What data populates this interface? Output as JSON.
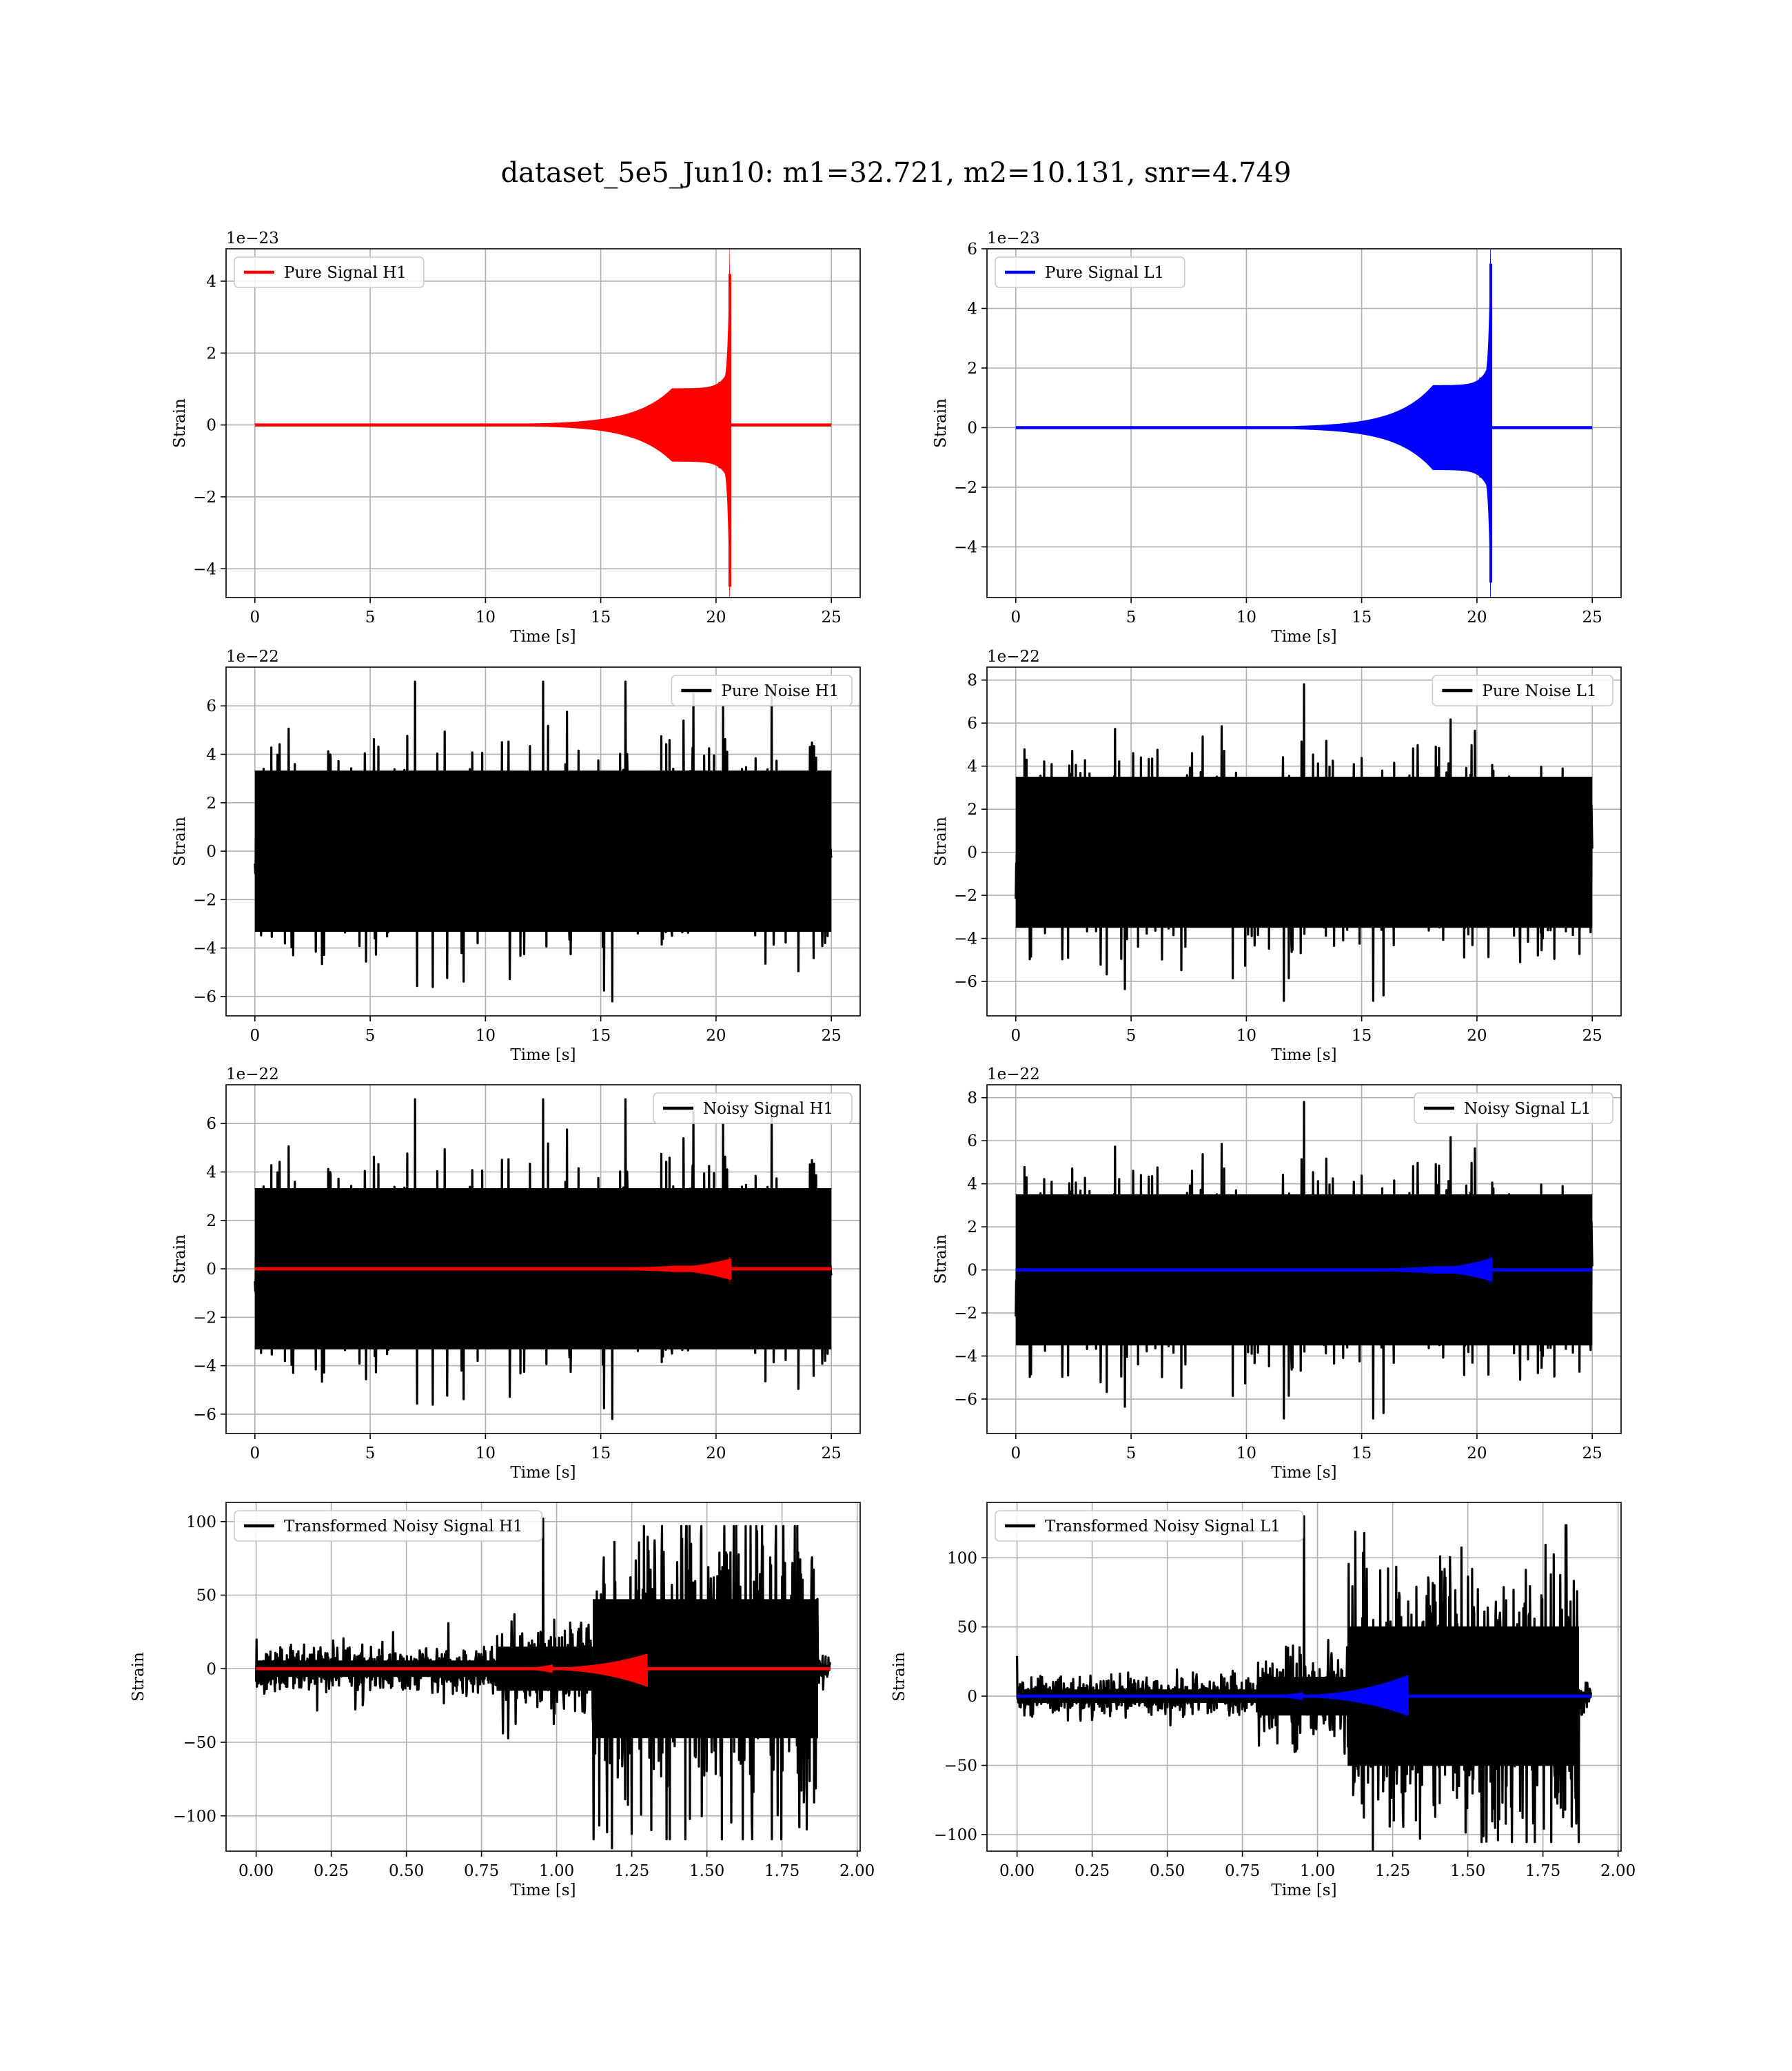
{
  "figure": {
    "title": "dataset_5e5_Jun10: m1=32.721, m2=10.131, snr=4.749"
  },
  "colors": {
    "h1": "#ff0000",
    "l1": "#0000ff",
    "noise": "#000000",
    "grid": "#b0b0b0"
  },
  "chart_data": [
    {
      "type": "line",
      "kind": "chirp",
      "legend": "Pure Signal H1",
      "legend_loc": "upper left",
      "xlabel": "Time [s]",
      "ylabel": "Strain",
      "offset_text": "1e−23",
      "xlim": [
        -1.25,
        26.25
      ],
      "ylim": [
        -4.8,
        4.9
      ],
      "xticks": [
        0,
        5,
        10,
        15,
        20,
        25
      ],
      "xticklabels": [
        "0",
        "5",
        "10",
        "15",
        "20",
        "25"
      ],
      "yticks": [
        -4,
        -2,
        0,
        2,
        4
      ],
      "yticklabels": [
        "−4",
        "−2",
        "0",
        "2",
        "4"
      ],
      "grid": true,
      "series": [
        {
          "color": "#ff0000",
          "x_start": 0,
          "x_end": 25,
          "merger_time": 20.6,
          "plateau_amplitude": 1.0,
          "peak_positive": 4.2,
          "peak_negative": -4.5,
          "plateau_start": 18.1
        }
      ]
    },
    {
      "type": "line",
      "kind": "chirp",
      "legend": "Pure Signal L1",
      "legend_loc": "upper left",
      "xlabel": "Time [s]",
      "ylabel": "Strain",
      "offset_text": "1e−23",
      "xlim": [
        -1.25,
        26.25
      ],
      "ylim": [
        -5.7,
        6.0
      ],
      "xticks": [
        0,
        5,
        10,
        15,
        20,
        25
      ],
      "xticklabels": [
        "0",
        "5",
        "10",
        "15",
        "20",
        "25"
      ],
      "yticks": [
        -4,
        -2,
        0,
        2,
        4,
        6
      ],
      "yticklabels": [
        "−4",
        "−2",
        "0",
        "2",
        "4",
        "6"
      ],
      "grid": true,
      "series": [
        {
          "color": "#0000ff",
          "x_start": 0,
          "x_end": 25,
          "merger_time": 20.6,
          "plateau_amplitude": 1.4,
          "peak_positive": 5.5,
          "peak_negative": -5.2,
          "plateau_start": 18.1
        }
      ]
    },
    {
      "type": "line",
      "kind": "noise",
      "legend": "Pure Noise H1",
      "legend_loc": "upper right",
      "xlabel": "Time [s]",
      "ylabel": "Strain",
      "offset_text": "1e−22",
      "xlim": [
        -1.25,
        26.25
      ],
      "ylim": [
        -6.8,
        7.6
      ],
      "xticks": [
        0,
        5,
        10,
        15,
        20,
        25
      ],
      "xticklabels": [
        "0",
        "5",
        "10",
        "15",
        "20",
        "25"
      ],
      "yticks": [
        -6,
        -4,
        -2,
        0,
        2,
        4,
        6
      ],
      "yticklabels": [
        "−6",
        "−4",
        "−2",
        "0",
        "2",
        "4",
        "6"
      ],
      "grid": true,
      "series": [
        {
          "color": "#000000",
          "x_start": 0,
          "x_end": 25,
          "envelope": 3.7,
          "max": 7.0,
          "min": -6.2,
          "seed": 11
        }
      ]
    },
    {
      "type": "line",
      "kind": "noise",
      "legend": "Pure Noise L1",
      "legend_loc": "upper right",
      "xlabel": "Time [s]",
      "ylabel": "Strain",
      "offset_text": "1e−22",
      "xlim": [
        -1.25,
        26.25
      ],
      "ylim": [
        -7.6,
        8.6
      ],
      "xticks": [
        0,
        5,
        10,
        15,
        20,
        25
      ],
      "xticklabels": [
        "0",
        "5",
        "10",
        "15",
        "20",
        "25"
      ],
      "yticks": [
        -6,
        -4,
        -2,
        0,
        2,
        4,
        6,
        8
      ],
      "yticklabels": [
        "−6",
        "−4",
        "−2",
        "0",
        "2",
        "4",
        "6",
        "8"
      ],
      "grid": true,
      "series": [
        {
          "color": "#000000",
          "x_start": 0,
          "x_end": 25,
          "envelope": 3.9,
          "max": 7.8,
          "min": -6.9,
          "seed": 23
        }
      ]
    },
    {
      "type": "line",
      "kind": "noisy",
      "legend": "Noisy Signal H1",
      "legend_loc": "upper right",
      "xlabel": "Time [s]",
      "ylabel": "Strain",
      "offset_text": "1e−22",
      "xlim": [
        -1.25,
        26.25
      ],
      "ylim": [
        -6.8,
        7.6
      ],
      "xticks": [
        0,
        5,
        10,
        15,
        20,
        25
      ],
      "xticklabels": [
        "0",
        "5",
        "10",
        "15",
        "20",
        "25"
      ],
      "yticks": [
        -6,
        -4,
        -2,
        0,
        2,
        4,
        6
      ],
      "yticklabels": [
        "−6",
        "−4",
        "−2",
        "0",
        "2",
        "4",
        "6"
      ],
      "grid": true,
      "series": [
        {
          "color": "#000000",
          "x_start": 0,
          "x_end": 25,
          "envelope": 3.7,
          "max": 7.0,
          "min": -6.2,
          "seed": 11
        },
        {
          "color": "#ff0000",
          "x_start": 0,
          "x_end": 25,
          "merger_time": 20.6,
          "plateau_amplitude": 0.1,
          "peak_positive": 0.42,
          "peak_negative": -0.45,
          "plateau_start": 18.1
        }
      ]
    },
    {
      "type": "line",
      "kind": "noisy",
      "legend": "Noisy Signal L1",
      "legend_loc": "upper right",
      "xlabel": "Time [s]",
      "ylabel": "Strain",
      "offset_text": "1e−22",
      "xlim": [
        -1.25,
        26.25
      ],
      "ylim": [
        -7.6,
        8.6
      ],
      "xticks": [
        0,
        5,
        10,
        15,
        20,
        25
      ],
      "xticklabels": [
        "0",
        "5",
        "10",
        "15",
        "20",
        "25"
      ],
      "yticks": [
        -6,
        -4,
        -2,
        0,
        2,
        4,
        6,
        8
      ],
      "yticklabels": [
        "−6",
        "−4",
        "−2",
        "0",
        "2",
        "4",
        "6",
        "8"
      ],
      "grid": true,
      "series": [
        {
          "color": "#000000",
          "x_start": 0,
          "x_end": 25,
          "envelope": 3.9,
          "max": 7.8,
          "min": -6.9,
          "seed": 23
        },
        {
          "color": "#0000ff",
          "x_start": 0,
          "x_end": 25,
          "merger_time": 20.6,
          "plateau_amplitude": 0.14,
          "peak_positive": 0.55,
          "peak_negative": -0.52,
          "plateau_start": 18.1
        }
      ]
    },
    {
      "type": "line",
      "kind": "transformed",
      "legend": "Transformed Noisy Signal H1",
      "legend_loc": "upper left",
      "xlabel": "Time [s]",
      "ylabel": "Strain",
      "offset_text": "",
      "xlim": [
        -0.1,
        2.01
      ],
      "ylim": [
        -124,
        113
      ],
      "xticks": [
        0,
        0.25,
        0.5,
        0.75,
        1.0,
        1.25,
        1.5,
        1.75,
        2.0
      ],
      "xticklabels": [
        "0.00",
        "0.25",
        "0.50",
        "0.75",
        "1.00",
        "1.25",
        "1.50",
        "1.75",
        "2.00"
      ],
      "yticks": [
        -100,
        -50,
        0,
        50,
        100
      ],
      "yticklabels": [
        "−100",
        "−50",
        "0",
        "50",
        "100"
      ],
      "grid": true,
      "series": [
        {
          "color": "#000000",
          "x_start": 0,
          "x_end": 1.91,
          "level_early": 8,
          "level_mid": 15,
          "level_late": 45,
          "step_time": 1.12,
          "end_time": 1.87,
          "max": 102,
          "min": -122,
          "seed": 37
        },
        {
          "color": "#ff0000",
          "x_start": 0,
          "x_end": 1.91,
          "merger_time": 1.3,
          "peak_positive": 10,
          "peak_negative": -12,
          "start": 0.82
        }
      ]
    },
    {
      "type": "line",
      "kind": "transformed",
      "legend": "Transformed Noisy Signal L1",
      "legend_loc": "upper left",
      "xlabel": "Time [s]",
      "ylabel": "Strain",
      "offset_text": "",
      "xlim": [
        -0.1,
        2.01
      ],
      "ylim": [
        -112,
        140
      ],
      "xticks": [
        0,
        0.25,
        0.5,
        0.75,
        1.0,
        1.25,
        1.5,
        1.75,
        2.0
      ],
      "xticklabels": [
        "0.00",
        "0.25",
        "0.50",
        "0.75",
        "1.00",
        "1.25",
        "1.50",
        "1.75",
        "2.00"
      ],
      "yticks": [
        -100,
        -50,
        0,
        50,
        100
      ],
      "yticklabels": [
        "−100",
        "−50",
        "0",
        "50",
        "100"
      ],
      "grid": true,
      "series": [
        {
          "color": "#000000",
          "x_start": 0,
          "x_end": 1.91,
          "level_early": 7,
          "level_mid": 14,
          "level_late": 48,
          "step_time": 1.1,
          "end_time": 1.87,
          "max": 130,
          "min": -111,
          "seed": 53,
          "initial_spike": 29
        },
        {
          "color": "#0000ff",
          "x_start": 0,
          "x_end": 1.91,
          "merger_time": 1.3,
          "peak_positive": 15,
          "peak_negative": -14,
          "start": 0.78
        }
      ]
    }
  ]
}
